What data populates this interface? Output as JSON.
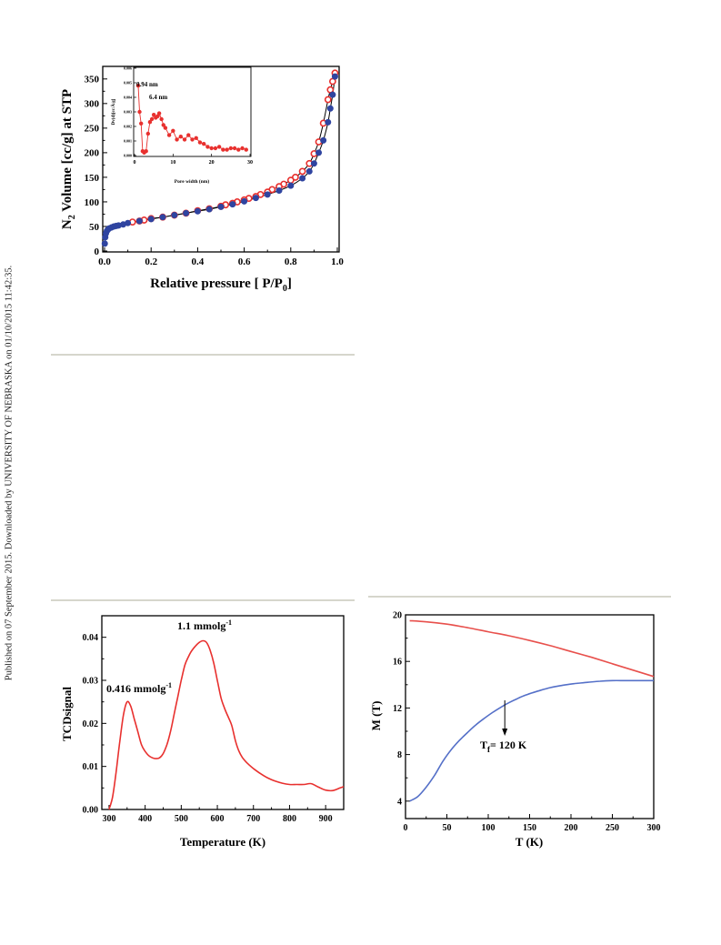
{
  "side_text": "Published on 07 September 2015. Downloaded by UNIVERSITY OF NEBRASKA on 01/10/2015 11:42:35.",
  "colors": {
    "red": "#e8302e",
    "blue": "#2f44a0",
    "tcd": "#e8302e",
    "m_red": "#e8504c",
    "m_blue": "#5570c8"
  },
  "chart_data": [
    {
      "id": "isotherm",
      "type": "scatter",
      "xlabel": "Relative pressure [ P/P",
      "xlabel_sub": "0",
      "xlabel_end": "]",
      "ylabel_pre": "N",
      "ylabel_sub": "2",
      "ylabel_post": " Volume [cc/g] at STP",
      "xlim": [
        0,
        1.0
      ],
      "ylim": [
        0,
        370
      ],
      "xticks": [
        "0.0",
        "0.2",
        "0.4",
        "0.6",
        "0.8",
        "1.0"
      ],
      "yticks": [
        "0",
        "50",
        "100",
        "150",
        "200",
        "250",
        "300",
        "350"
      ],
      "series": [
        {
          "role": "adsorption",
          "style": "filled-blue",
          "x": [
            0.001,
            0.003,
            0.006,
            0.01,
            0.015,
            0.02,
            0.03,
            0.04,
            0.05,
            0.06,
            0.08,
            0.1,
            0.15,
            0.2,
            0.25,
            0.3,
            0.35,
            0.4,
            0.45,
            0.5,
            0.55,
            0.6,
            0.65,
            0.7,
            0.75,
            0.8,
            0.85,
            0.88,
            0.9,
            0.92,
            0.94,
            0.96,
            0.97,
            0.98,
            0.99
          ],
          "y": [
            15,
            28,
            36,
            41,
            44,
            46,
            48,
            50,
            51,
            52,
            54,
            57,
            61,
            65,
            69,
            73,
            77,
            81,
            85,
            90,
            95,
            101,
            108,
            115,
            123,
            133,
            148,
            162,
            178,
            200,
            225,
            262,
            290,
            318,
            355
          ]
        },
        {
          "role": "desorption",
          "style": "open-red",
          "x": [
            0.99,
            0.98,
            0.97,
            0.96,
            0.94,
            0.92,
            0.9,
            0.88,
            0.85,
            0.82,
            0.8,
            0.77,
            0.75,
            0.72,
            0.7,
            0.67,
            0.65,
            0.62,
            0.6,
            0.57,
            0.55,
            0.52,
            0.5,
            0.45,
            0.4,
            0.35,
            0.3,
            0.25,
            0.2,
            0.17,
            0.15,
            0.12
          ],
          "y": [
            362,
            345,
            328,
            308,
            260,
            222,
            198,
            178,
            162,
            150,
            144,
            136,
            131,
            125,
            120,
            115,
            111,
            107,
            104,
            100,
            97,
            94,
            91,
            86,
            82,
            77,
            73,
            69,
            66,
            63,
            61,
            59
          ]
        }
      ],
      "inset": {
        "type": "line",
        "xlabel": "Pore width (nm)",
        "ylabel": "Dv(d)[cc/Å/g]",
        "xlim": [
          0,
          30
        ],
        "ylim": [
          0,
          0.006
        ],
        "xticks": [
          "0",
          "10",
          "20",
          "30"
        ],
        "yticks": [
          "0.000",
          "0.001",
          "0.002",
          "0.003",
          "0.004",
          "0.005",
          "0.006"
        ],
        "annotations": [
          "0.94 nm",
          "6.4 nm"
        ],
        "x": [
          0.94,
          1.3,
          1.7,
          2.1,
          2.5,
          3.0,
          3.5,
          4.0,
          4.5,
          5.0,
          5.5,
          6.0,
          6.4,
          7.0,
          7.5,
          8.0,
          9.0,
          10.0,
          11.0,
          12.0,
          13.0,
          14.0,
          15.0,
          16.0,
          17.0,
          18.0,
          19.0,
          20.0,
          21.0,
          22.0,
          23.0,
          24.0,
          25.0,
          26.0,
          27.0,
          28.0,
          29.0
        ],
        "y": [
          0.0048,
          0.003,
          0.0022,
          0.0003,
          0.0002,
          0.0003,
          0.0015,
          0.0023,
          0.0025,
          0.0028,
          0.0026,
          0.0027,
          0.0029,
          0.0025,
          0.0021,
          0.0019,
          0.0014,
          0.0017,
          0.0011,
          0.0013,
          0.0011,
          0.0014,
          0.0011,
          0.0012,
          0.0009,
          0.0008,
          0.0006,
          0.0005,
          0.0005,
          0.0006,
          0.0004,
          0.0004,
          0.0005,
          0.0005,
          0.0004,
          0.0005,
          0.0004
        ]
      }
    },
    {
      "id": "tpd",
      "type": "line",
      "xlabel": "Temperature (K)",
      "ylabel": "TCDsignal",
      "xlim": [
        280,
        950
      ],
      "ylim": [
        0,
        0.045
      ],
      "xticks": [
        "300",
        "400",
        "500",
        "600",
        "700",
        "800",
        "900"
      ],
      "yticks": [
        "0.00",
        "0.01",
        "0.02",
        "0.03",
        "0.04"
      ],
      "annotations": [
        {
          "text": "0.416 mmolg",
          "sup": "-1"
        },
        {
          "text": "1.1 mmolg",
          "sup": "-1"
        }
      ],
      "x": [
        300,
        310,
        320,
        330,
        340,
        350,
        360,
        370,
        380,
        390,
        400,
        410,
        420,
        430,
        440,
        450,
        460,
        470,
        480,
        490,
        500,
        510,
        520,
        530,
        540,
        550,
        560,
        570,
        580,
        590,
        600,
        610,
        620,
        630,
        640,
        650,
        660,
        670,
        680,
        690,
        700,
        720,
        740,
        760,
        780,
        800,
        820,
        840,
        860,
        880,
        900,
        920,
        940,
        950
      ],
      "y": [
        0,
        0.003,
        0.009,
        0.016,
        0.022,
        0.025,
        0.024,
        0.021,
        0.018,
        0.015,
        0.0135,
        0.0125,
        0.012,
        0.0118,
        0.012,
        0.013,
        0.015,
        0.018,
        0.022,
        0.026,
        0.03,
        0.0335,
        0.0355,
        0.037,
        0.038,
        0.0388,
        0.0392,
        0.0388,
        0.037,
        0.034,
        0.03,
        0.026,
        0.0235,
        0.0215,
        0.0195,
        0.016,
        0.0135,
        0.012,
        0.011,
        0.0102,
        0.0095,
        0.0083,
        0.0073,
        0.0066,
        0.0061,
        0.0058,
        0.0058,
        0.0058,
        0.006,
        0.0052,
        0.0045,
        0.0044,
        0.005,
        0.0053
      ]
    },
    {
      "id": "magnet",
      "type": "line",
      "xlabel": "T (K)",
      "ylabel": "M (T)",
      "xlim": [
        0,
        300
      ],
      "ylim": [
        2.5,
        20
      ],
      "xticks": [
        "0",
        "50",
        "100",
        "150",
        "200",
        "250",
        "300"
      ],
      "yticks": [
        "4",
        "8",
        "12",
        "16",
        "20"
      ],
      "annotation": {
        "text": "T",
        "sub": "f",
        "rest": "= 120 K",
        "x": 120
      },
      "series": [
        {
          "style": "red",
          "x": [
            5,
            25,
            50,
            75,
            100,
            125,
            150,
            175,
            200,
            225,
            250,
            275,
            300
          ],
          "y": [
            19.5,
            19.4,
            19.2,
            18.9,
            18.55,
            18.2,
            17.8,
            17.35,
            16.85,
            16.35,
            15.8,
            15.25,
            14.7
          ]
        },
        {
          "style": "blue",
          "x": [
            5,
            15,
            25,
            35,
            45,
            55,
            65,
            75,
            85,
            95,
            105,
            115,
            125,
            135,
            145,
            160,
            175,
            190,
            205,
            220,
            235,
            250,
            265,
            280,
            300
          ],
          "y": [
            4.0,
            4.4,
            5.2,
            6.2,
            7.4,
            8.4,
            9.2,
            9.9,
            10.55,
            11.1,
            11.6,
            12.05,
            12.45,
            12.8,
            13.1,
            13.45,
            13.75,
            13.95,
            14.1,
            14.2,
            14.3,
            14.35,
            14.35,
            14.35,
            14.35
          ]
        }
      ]
    }
  ]
}
